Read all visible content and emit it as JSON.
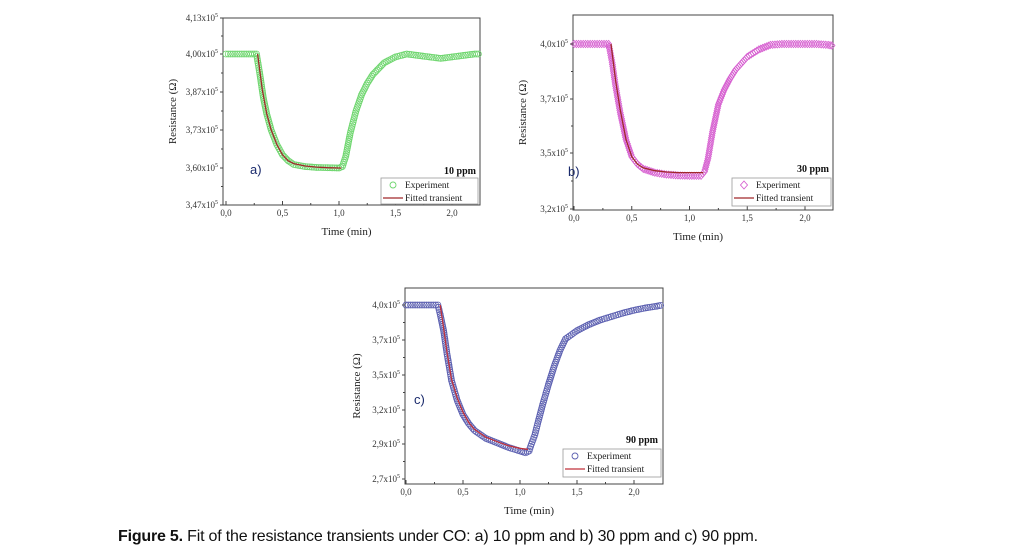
{
  "caption": {
    "label": "Figure 5.",
    "text": " Fit of the resistance transients under CO: a) 10 ppm and b) 30 ppm and c) 90 ppm."
  },
  "chart_data": [
    {
      "type": "scatter",
      "panel": "a)",
      "title": "10 ppm",
      "xlabel": "Time (min)",
      "ylabel": "Resistance (Ω)",
      "xlim": [
        0.0,
        2.25
      ],
      "ylim": [
        347000.0,
        413000.0
      ],
      "xticks": [
        0.0,
        0.5,
        1.0,
        1.5,
        2.0
      ],
      "xtick_labels": [
        "0,0",
        "0,5",
        "1,0",
        "1,5",
        "2,0"
      ],
      "yticks": [
        347000.0,
        360000.0,
        373000.0,
        387000.0,
        400000.0,
        413000.0
      ],
      "ytick_labels": [
        "3,47x10⁵",
        "3,60x10⁵",
        "3,73x10⁵",
        "3,87x10⁵",
        "4,00x10⁵",
        "4,13x10⁵"
      ],
      "legend": {
        "position": "bottom-right",
        "entries": [
          "Experiment",
          "Fitted transient"
        ]
      },
      "marker": "circle",
      "marker_color": "#6fd66f",
      "fit_color": "#a0282a",
      "grid": false,
      "series": [
        {
          "name": "Experiment",
          "x": [
            0.0,
            0.1,
            0.2,
            0.27,
            0.3,
            0.33,
            0.36,
            0.4,
            0.45,
            0.5,
            0.55,
            0.6,
            0.7,
            0.8,
            0.9,
            1.0,
            1.03,
            1.06,
            1.1,
            1.15,
            1.2,
            1.25,
            1.3,
            1.35,
            1.4,
            1.5,
            1.6,
            1.7,
            1.8,
            1.9,
            2.0,
            2.1,
            2.2,
            2.25
          ],
          "y": [
            400000.0,
            400000.0,
            400000.0,
            400000.0,
            393000.0,
            385000.0,
            379000.0,
            373000.0,
            368000.0,
            364500.0,
            362500.0,
            361200.0,
            360500.0,
            360200.0,
            360100.0,
            360000.0,
            360500.0,
            364000.0,
            372000.0,
            380000.0,
            386000.0,
            390000.0,
            393000.0,
            395000.0,
            397000.0,
            399000.0,
            400000.0,
            399500.0,
            399000.0,
            398500.0,
            399000.0,
            399500.0,
            400000.0,
            400000.0
          ]
        },
        {
          "name": "Fitted transient",
          "x": [
            0.28,
            0.32,
            0.36,
            0.4,
            0.45,
            0.5,
            0.55,
            0.6,
            0.7,
            0.8,
            0.9,
            1.0,
            1.02
          ],
          "y": [
            400000.0,
            388000.0,
            379000.0,
            373000.0,
            368000.0,
            364500.0,
            362500.0,
            361500.0,
            360700.0,
            360300.0,
            360100.0,
            360000.0,
            360000.0
          ]
        }
      ]
    },
    {
      "type": "scatter",
      "panel": "b)",
      "title": "30 ppm",
      "xlabel": "Time (min)",
      "ylabel": "Resistance (Ω)",
      "xlim": [
        0.0,
        2.25
      ],
      "ylim": [
        320000.0,
        413000.0
      ],
      "xticks": [
        0.0,
        0.5,
        1.0,
        1.5,
        2.0
      ],
      "xtick_labels": [
        "0,0",
        "0,5",
        "1,0",
        "1,5",
        "2,0"
      ],
      "yticks": [
        320000.0,
        350000.0,
        370000.0,
        400000.0
      ],
      "ytick_labels": [
        "3,2x10⁵",
        "3,5x10⁵",
        "3,7x10⁵",
        "4,0x10⁵"
      ],
      "legend": {
        "position": "bottom-right",
        "entries": [
          "Experiment",
          "Fitted transient"
        ]
      },
      "marker": "diamond",
      "marker_color": "#d65fd0",
      "fit_color": "#a0282a",
      "grid": false,
      "series": [
        {
          "name": "Experiment",
          "x": [
            0.0,
            0.1,
            0.2,
            0.3,
            0.33,
            0.36,
            0.4,
            0.45,
            0.5,
            0.55,
            0.6,
            0.7,
            0.8,
            0.9,
            1.0,
            1.1,
            1.13,
            1.16,
            1.2,
            1.25,
            1.3,
            1.35,
            1.4,
            1.5,
            1.6,
            1.7,
            1.8,
            1.9,
            2.0,
            2.1,
            2.2,
            2.25
          ],
          "y": [
            400000.0,
            400000.0,
            400000.0,
            400000.0,
            390000.0,
            377000.0,
            365000.0,
            355000.0,
            348000.0,
            344000.0,
            341500.0,
            339500.0,
            338500.0,
            338000.0,
            337800.0,
            337800.0,
            340000.0,
            347000.0,
            358000.0,
            368000.0,
            375000.0,
            381000.0,
            386000.0,
            393000.0,
            397000.0,
            399500.0,
            400000.0,
            400000.0,
            400000.0,
            400000.0,
            399500.0,
            399000.0
          ]
        },
        {
          "name": "Fitted transient",
          "x": [
            0.32,
            0.36,
            0.4,
            0.45,
            0.5,
            0.55,
            0.6,
            0.7,
            0.8,
            0.9,
            1.0,
            1.12
          ],
          "y": [
            400000.0,
            380000.0,
            366000.0,
            355000.0,
            348000.0,
            344000.0,
            342000.0,
            340500.0,
            339800.0,
            339500.0,
            339500.0,
            339500.0
          ]
        }
      ]
    },
    {
      "type": "scatter",
      "panel": "c)",
      "title": "90 ppm",
      "xlabel": "Time (min)",
      "ylabel": "Resistance (Ω)",
      "xlim": [
        0.0,
        2.25
      ],
      "ylim": [
        270000.0,
        413000.0
      ],
      "xticks": [
        0.0,
        0.5,
        1.0,
        1.5,
        2.0
      ],
      "xtick_labels": [
        "0,0",
        "0,5",
        "1,0",
        "1,5",
        "2,0"
      ],
      "yticks": [
        270000.0,
        290000.0,
        320000.0,
        350000.0,
        370000.0,
        400000.0
      ],
      "ytick_labels": [
        "2,7x10⁵",
        "2,9x10⁵",
        "3,2x10⁵",
        "3,5x10⁵",
        "3,7x10⁵",
        "4,0x10⁵"
      ],
      "legend": {
        "position": "bottom-right",
        "entries": [
          "Experiment",
          "Fitted transient"
        ]
      },
      "marker": "circle",
      "marker_color": "#5b5fb0",
      "fit_color": "#c0303a",
      "grid": false,
      "series": [
        {
          "name": "Experiment",
          "x": [
            0.0,
            0.1,
            0.2,
            0.28,
            0.3,
            0.33,
            0.36,
            0.4,
            0.45,
            0.5,
            0.55,
            0.6,
            0.7,
            0.8,
            0.9,
            1.0,
            1.05,
            1.08,
            1.1,
            1.13,
            1.16,
            1.2,
            1.25,
            1.3,
            1.35,
            1.4,
            1.5,
            1.6,
            1.7,
            1.8,
            1.9,
            2.0,
            2.1,
            2.2,
            2.25
          ],
          "y": [
            400000.0,
            400000.0,
            400000.0,
            400000.0,
            392000.0,
            378000.0,
            362000.0,
            345000.0,
            328000.0,
            316000.0,
            308000.0,
            302000.0,
            295000.0,
            291000.0,
            288000.0,
            286000.0,
            285000.0,
            286000.0,
            290000.0,
            298000.0,
            310000.0,
            325000.0,
            342000.0,
            355000.0,
            364000.0,
            371000.0,
            378000.0,
            383000.0,
            387000.0,
            390000.0,
            393000.0,
            395500.0,
            397500.0,
            399000.0,
            400000.0
          ]
        },
        {
          "name": "Fitted transient",
          "x": [
            0.3,
            0.33,
            0.36,
            0.4,
            0.45,
            0.5,
            0.55,
            0.6,
            0.7,
            0.8,
            0.9,
            1.0,
            1.07
          ],
          "y": [
            400000.0,
            380000.0,
            363000.0,
            346000.0,
            330000.0,
            318000.0,
            309000.0,
            303000.0,
            296000.0,
            292000.0,
            289000.0,
            287500.0,
            287000.0
          ]
        }
      ]
    }
  ]
}
